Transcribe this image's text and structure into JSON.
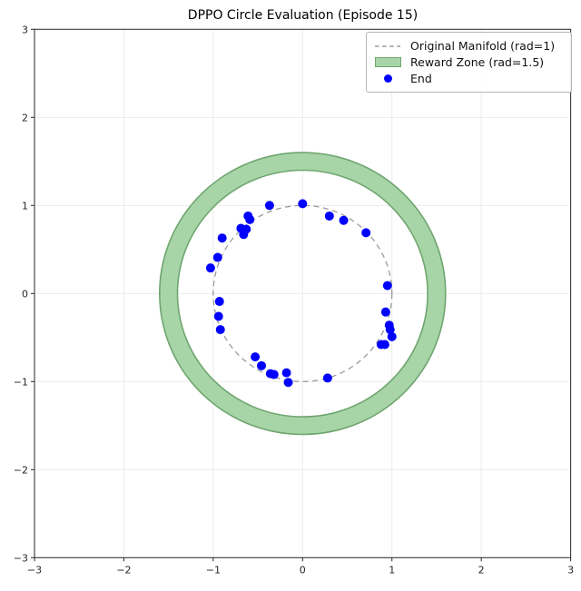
{
  "figure": {
    "title": "DPPO Circle Evaluation (Episode 15)"
  },
  "chart_data": {
    "type": "scatter",
    "title": "DPPO Circle Evaluation (Episode 15)",
    "xlabel": "",
    "ylabel": "",
    "xlim": [
      -3,
      3
    ],
    "ylim": [
      -3,
      3
    ],
    "xticks": [
      -3,
      -2,
      -1,
      0,
      1,
      2,
      3
    ],
    "yticks": [
      -3,
      -2,
      -1,
      0,
      1,
      2,
      3
    ],
    "xtick_labels": [
      "−3",
      "−2",
      "−1",
      "0",
      "1",
      "2",
      "3"
    ],
    "ytick_labels": [
      "−3",
      "−2",
      "−1",
      "0",
      "1",
      "2",
      "3"
    ],
    "grid": true,
    "legend": {
      "position": "upper right",
      "entries": [
        {
          "label": "Original Manifold (rad=1)",
          "type": "dashed-line",
          "color": "#9b9b9b"
        },
        {
          "label": "Reward Zone (rad=1.5)",
          "type": "patch",
          "fill": "#a8d5a8",
          "edge": "#6fa56f"
        },
        {
          "label": "End",
          "type": "marker",
          "color": "#0000ff"
        }
      ]
    },
    "manifold_circle": {
      "center": [
        0,
        0
      ],
      "radius": 1.0,
      "line_style": "dashed",
      "color": "#9b9b9b"
    },
    "reward_zone": {
      "center": [
        0,
        0
      ],
      "radius": 1.5,
      "inner_radius": 1.4,
      "outer_radius": 1.6,
      "fill_color": "#a8d5a8",
      "edge_color": "#6fa56f"
    },
    "series": [
      {
        "name": "End",
        "marker": "circle",
        "color": "#0000ff",
        "marker_radius_px": 5,
        "points": [
          [
            -0.37,
            1.0
          ],
          [
            0.0,
            1.02
          ],
          [
            0.3,
            0.88
          ],
          [
            0.46,
            0.83
          ],
          [
            0.71,
            0.69
          ],
          [
            -0.61,
            0.88
          ],
          [
            -0.59,
            0.84
          ],
          [
            -0.69,
            0.74
          ],
          [
            -0.63,
            0.73
          ],
          [
            -0.66,
            0.67
          ],
          [
            -0.9,
            0.63
          ],
          [
            -0.95,
            0.41
          ],
          [
            -1.03,
            0.29
          ],
          [
            -0.93,
            -0.09
          ],
          [
            -0.94,
            -0.26
          ],
          [
            -0.92,
            -0.41
          ],
          [
            -0.53,
            -0.72
          ],
          [
            -0.46,
            -0.82
          ],
          [
            -0.36,
            -0.91
          ],
          [
            -0.32,
            -0.92
          ],
          [
            -0.18,
            -0.9
          ],
          [
            -0.16,
            -1.01
          ],
          [
            0.28,
            -0.96
          ],
          [
            0.88,
            -0.58
          ],
          [
            0.92,
            -0.58
          ],
          [
            1.0,
            -0.49
          ],
          [
            0.98,
            -0.41
          ],
          [
            0.97,
            -0.36
          ],
          [
            0.93,
            -0.21
          ],
          [
            0.95,
            0.09
          ]
        ]
      }
    ],
    "style": {
      "spine_color": "#3a3a3a",
      "tick_color": "#262626",
      "grid_color": "#e2e2e2",
      "background": "#ffffff"
    }
  }
}
